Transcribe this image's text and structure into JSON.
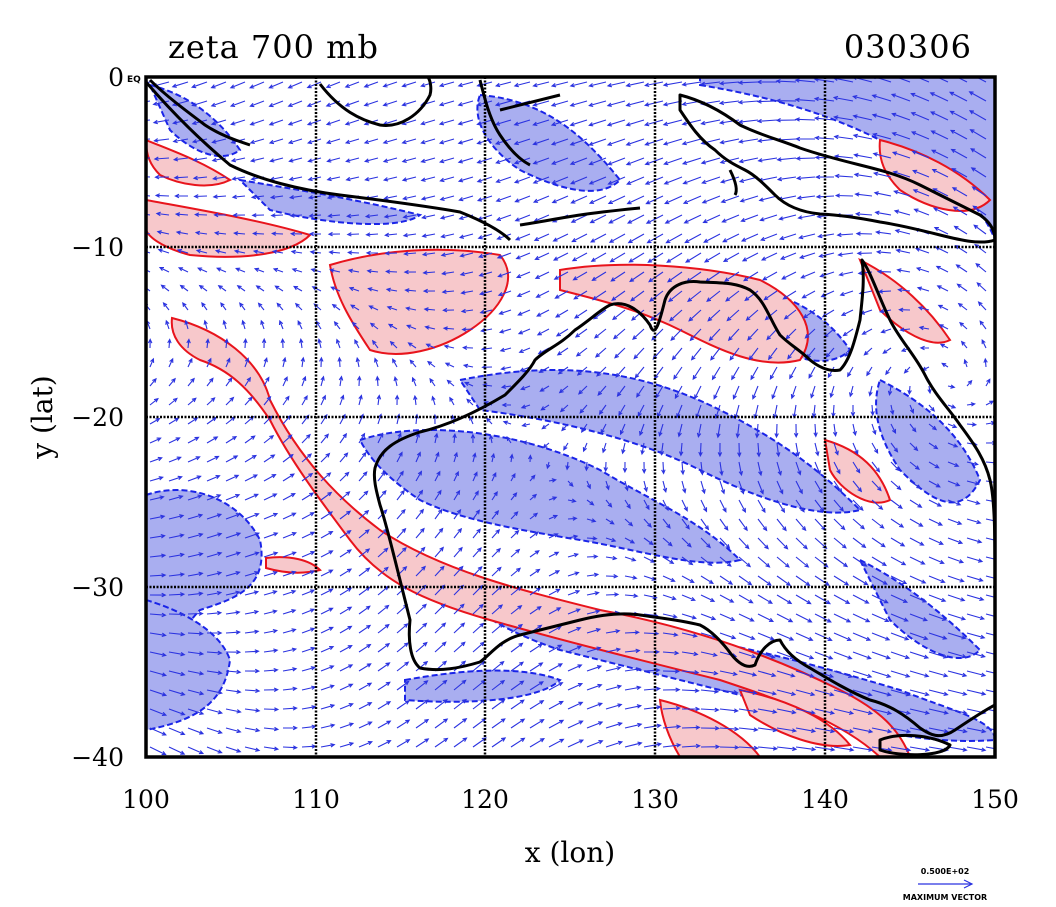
{
  "title_left": "zeta 700 mb",
  "title_right": "030306",
  "x_axis": {
    "label": "x (lon)",
    "ticks": [
      "100",
      "110",
      "120",
      "130",
      "140",
      "150"
    ]
  },
  "y_axis": {
    "label": "y (lat)",
    "ticks": [
      "0",
      "−10",
      "−20",
      "−30",
      "−40"
    ],
    "eq_marker": "EQ"
  },
  "legend": {
    "vector_scale": "0.500E+02",
    "vector_label": "MAXIMUM VECTOR"
  },
  "colors": {
    "positive_fill": "#f7c8cb",
    "positive_line": "#e8141c",
    "negative_fill": "#a9aef0",
    "negative_line": "#1a24e8",
    "vector": "#2b33e0",
    "coast": "#000000"
  },
  "map": {
    "type": "vorticity contour with wind vectors",
    "lon_range": [
      100,
      150
    ],
    "lat_range": [
      -40,
      0
    ],
    "grid_lon": [
      110,
      120,
      130,
      140
    ],
    "grid_lat": [
      -10,
      -20,
      -30
    ]
  }
}
